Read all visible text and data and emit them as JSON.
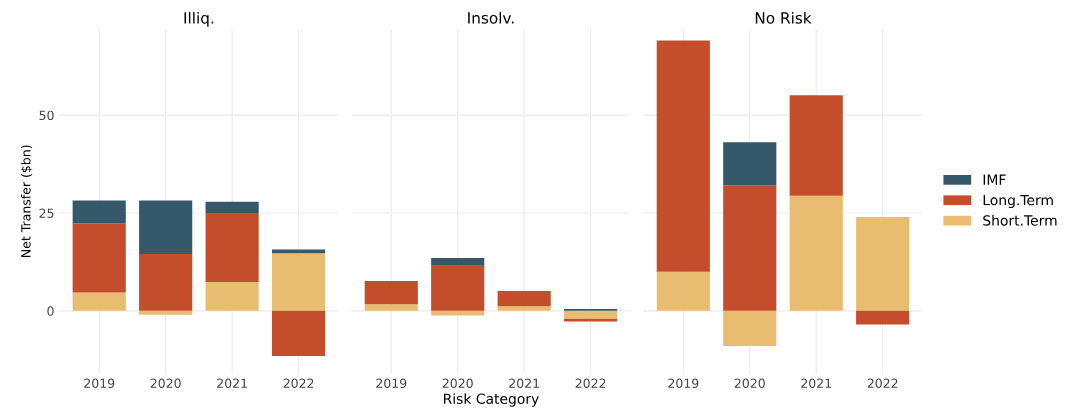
{
  "chart_data": [
    {
      "type": "bar",
      "title": "Illiq.",
      "ylabel": "Net Transfer ($bn)",
      "stacked": true,
      "categories": [
        "2019",
        "2020",
        "2021",
        "2022"
      ],
      "ylim": [
        -16,
        72
      ],
      "yticks": [
        0,
        25,
        50
      ],
      "grid": true,
      "series": [
        {
          "color": "#e8bd72",
          "values": [
            4.7,
            -1.0,
            7.4,
            14.7
          ]
        },
        {
          "color": "#c44e2b",
          "values": [
            17.6,
            14.5,
            17.4,
            -11.5
          ]
        },
        {
          "color": "#35596a",
          "values": [
            5.9,
            13.7,
            3.1,
            1.0
          ]
        }
      ]
    },
    {
      "type": "bar",
      "title": "Insolv.",
      "xlabel": "Risk Category",
      "stacked": true,
      "categories": [
        "2019",
        "2020",
        "2021",
        "2022"
      ],
      "ylim": [
        -16,
        72
      ],
      "yticks": [
        0,
        25,
        50
      ],
      "grid": true,
      "tick_labels": "x",
      "series": [
        {
          "color": "#e8bd72",
          "values": [
            1.7,
            -1.2,
            1.2,
            -2.0
          ]
        },
        {
          "color": "#c44e2b",
          "values": [
            5.9,
            11.5,
            3.9,
            -0.7
          ]
        },
        {
          "color": "#35596a",
          "values": [
            null,
            2.0,
            null,
            0.5
          ]
        }
      ]
    },
    {
      "type": "bar",
      "title": "No Risk",
      "stacked": true,
      "categories": [
        "2019",
        "2020",
        "2021",
        "2022"
      ],
      "ylim": [
        -16,
        72
      ],
      "yticks": [
        0,
        25,
        50
      ],
      "grid": true,
      "tick_labels": "x",
      "legend": "right",
      "series": [
        {
          "name": "Short.Term",
          "color": "#e8bd72",
          "values": [
            10.0,
            -9.0,
            29.4,
            24.0
          ]
        },
        {
          "name": "Long.Term",
          "color": "#c44e2b",
          "values": [
            59.1,
            32.1,
            25.7,
            -3.5
          ]
        },
        {
          "name": "IMF",
          "color": "#35596a",
          "values": [
            null,
            11.0,
            null,
            null
          ]
        }
      ]
    }
  ]
}
